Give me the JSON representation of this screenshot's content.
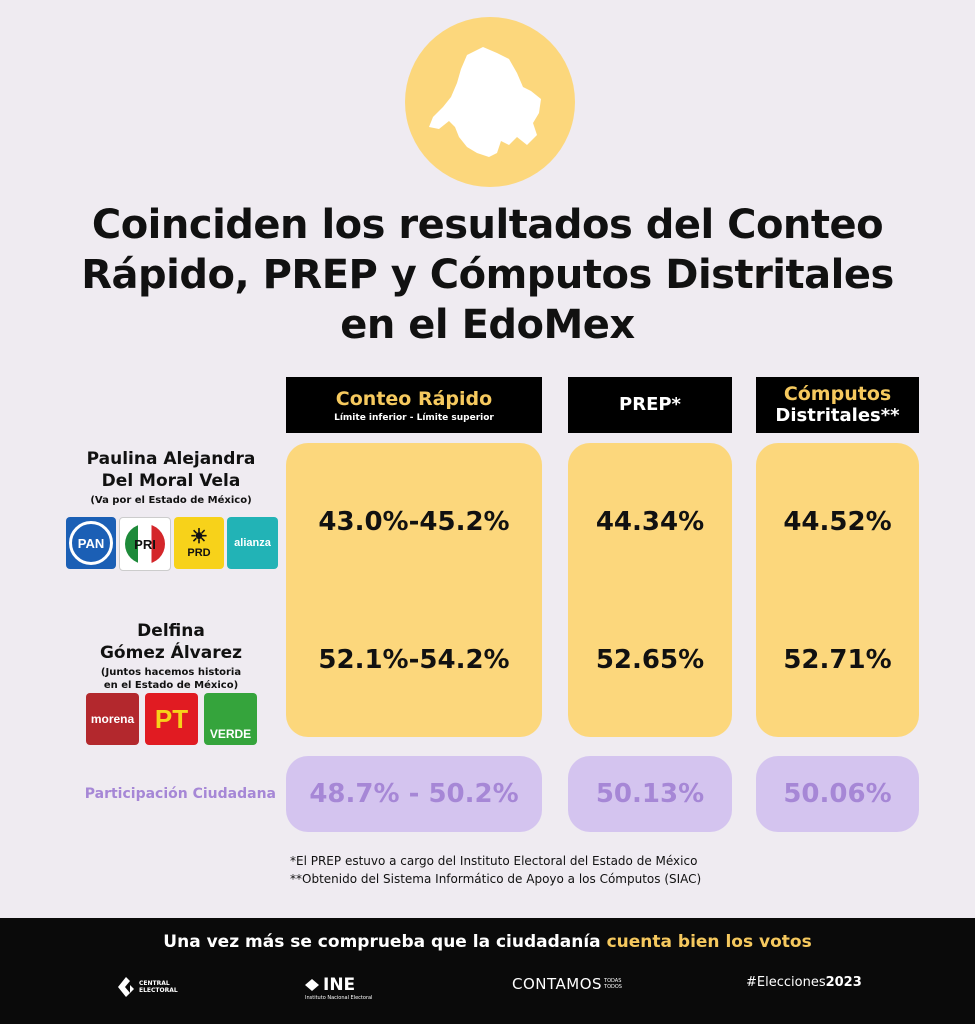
{
  "title_lines": [
    "Coinciden los resultados del Conteo",
    "Rápido, PREP y Cómputos Distritales",
    "en el EdoMex"
  ],
  "columns": {
    "conteo": {
      "label": "Conteo Rápido",
      "sub": "Límite inferior - Límite superior"
    },
    "prep": {
      "label": "PREP*"
    },
    "computos": {
      "label_1": "Cómputos",
      "label_2": "Distritales**"
    }
  },
  "candidates": [
    {
      "name_1": "Paulina Alejandra",
      "name_2": "Del Moral Vela",
      "coalition": "(Va por el Estado de México)",
      "parties": [
        "PAN",
        "PRI",
        "PRD",
        "alianza"
      ],
      "conteo": "43.0%-45.2%",
      "prep": "44.34%",
      "computos": "44.52%"
    },
    {
      "name_1": "Delfina",
      "name_2": "Gómez Álvarez",
      "coalition_1": "(Juntos hacemos historia",
      "coalition_2": "en el Estado de México)",
      "parties": [
        "morena",
        "PT",
        "VERDE"
      ],
      "conteo": "52.1%-54.2%",
      "prep": "52.65%",
      "computos": "52.71%"
    }
  ],
  "participation": {
    "label": "Participación Ciudadana",
    "conteo": "48.7% - 50.2%",
    "prep": "50.13%",
    "computos": "50.06%"
  },
  "notes": [
    "*El PREP estuvo a cargo del Instituto Electoral del Estado de México",
    "**Obtenido del Sistema Informático de Apoyo a los Cómputos (SIAC)"
  ],
  "footer": {
    "slogan_a": "Una vez más se comprueba que la ciudadanía ",
    "slogan_b": "cuenta bien los votos",
    "central": "CENTRAL ELECTORAL",
    "ine": "INE",
    "ine_sub": "Instituto Nacional Electoral",
    "contamos": "CONTAMOS",
    "contamos_small_1": "TODAS",
    "contamos_small_2": "TODOS",
    "hashtag_a": "#Elecciones",
    "hashtag_b": "2023"
  },
  "colors": {
    "card_yellow": "#fcd77c",
    "card_purple": "#d4c4ef",
    "purple_text": "#a687d6",
    "gold": "#f6c95e"
  }
}
